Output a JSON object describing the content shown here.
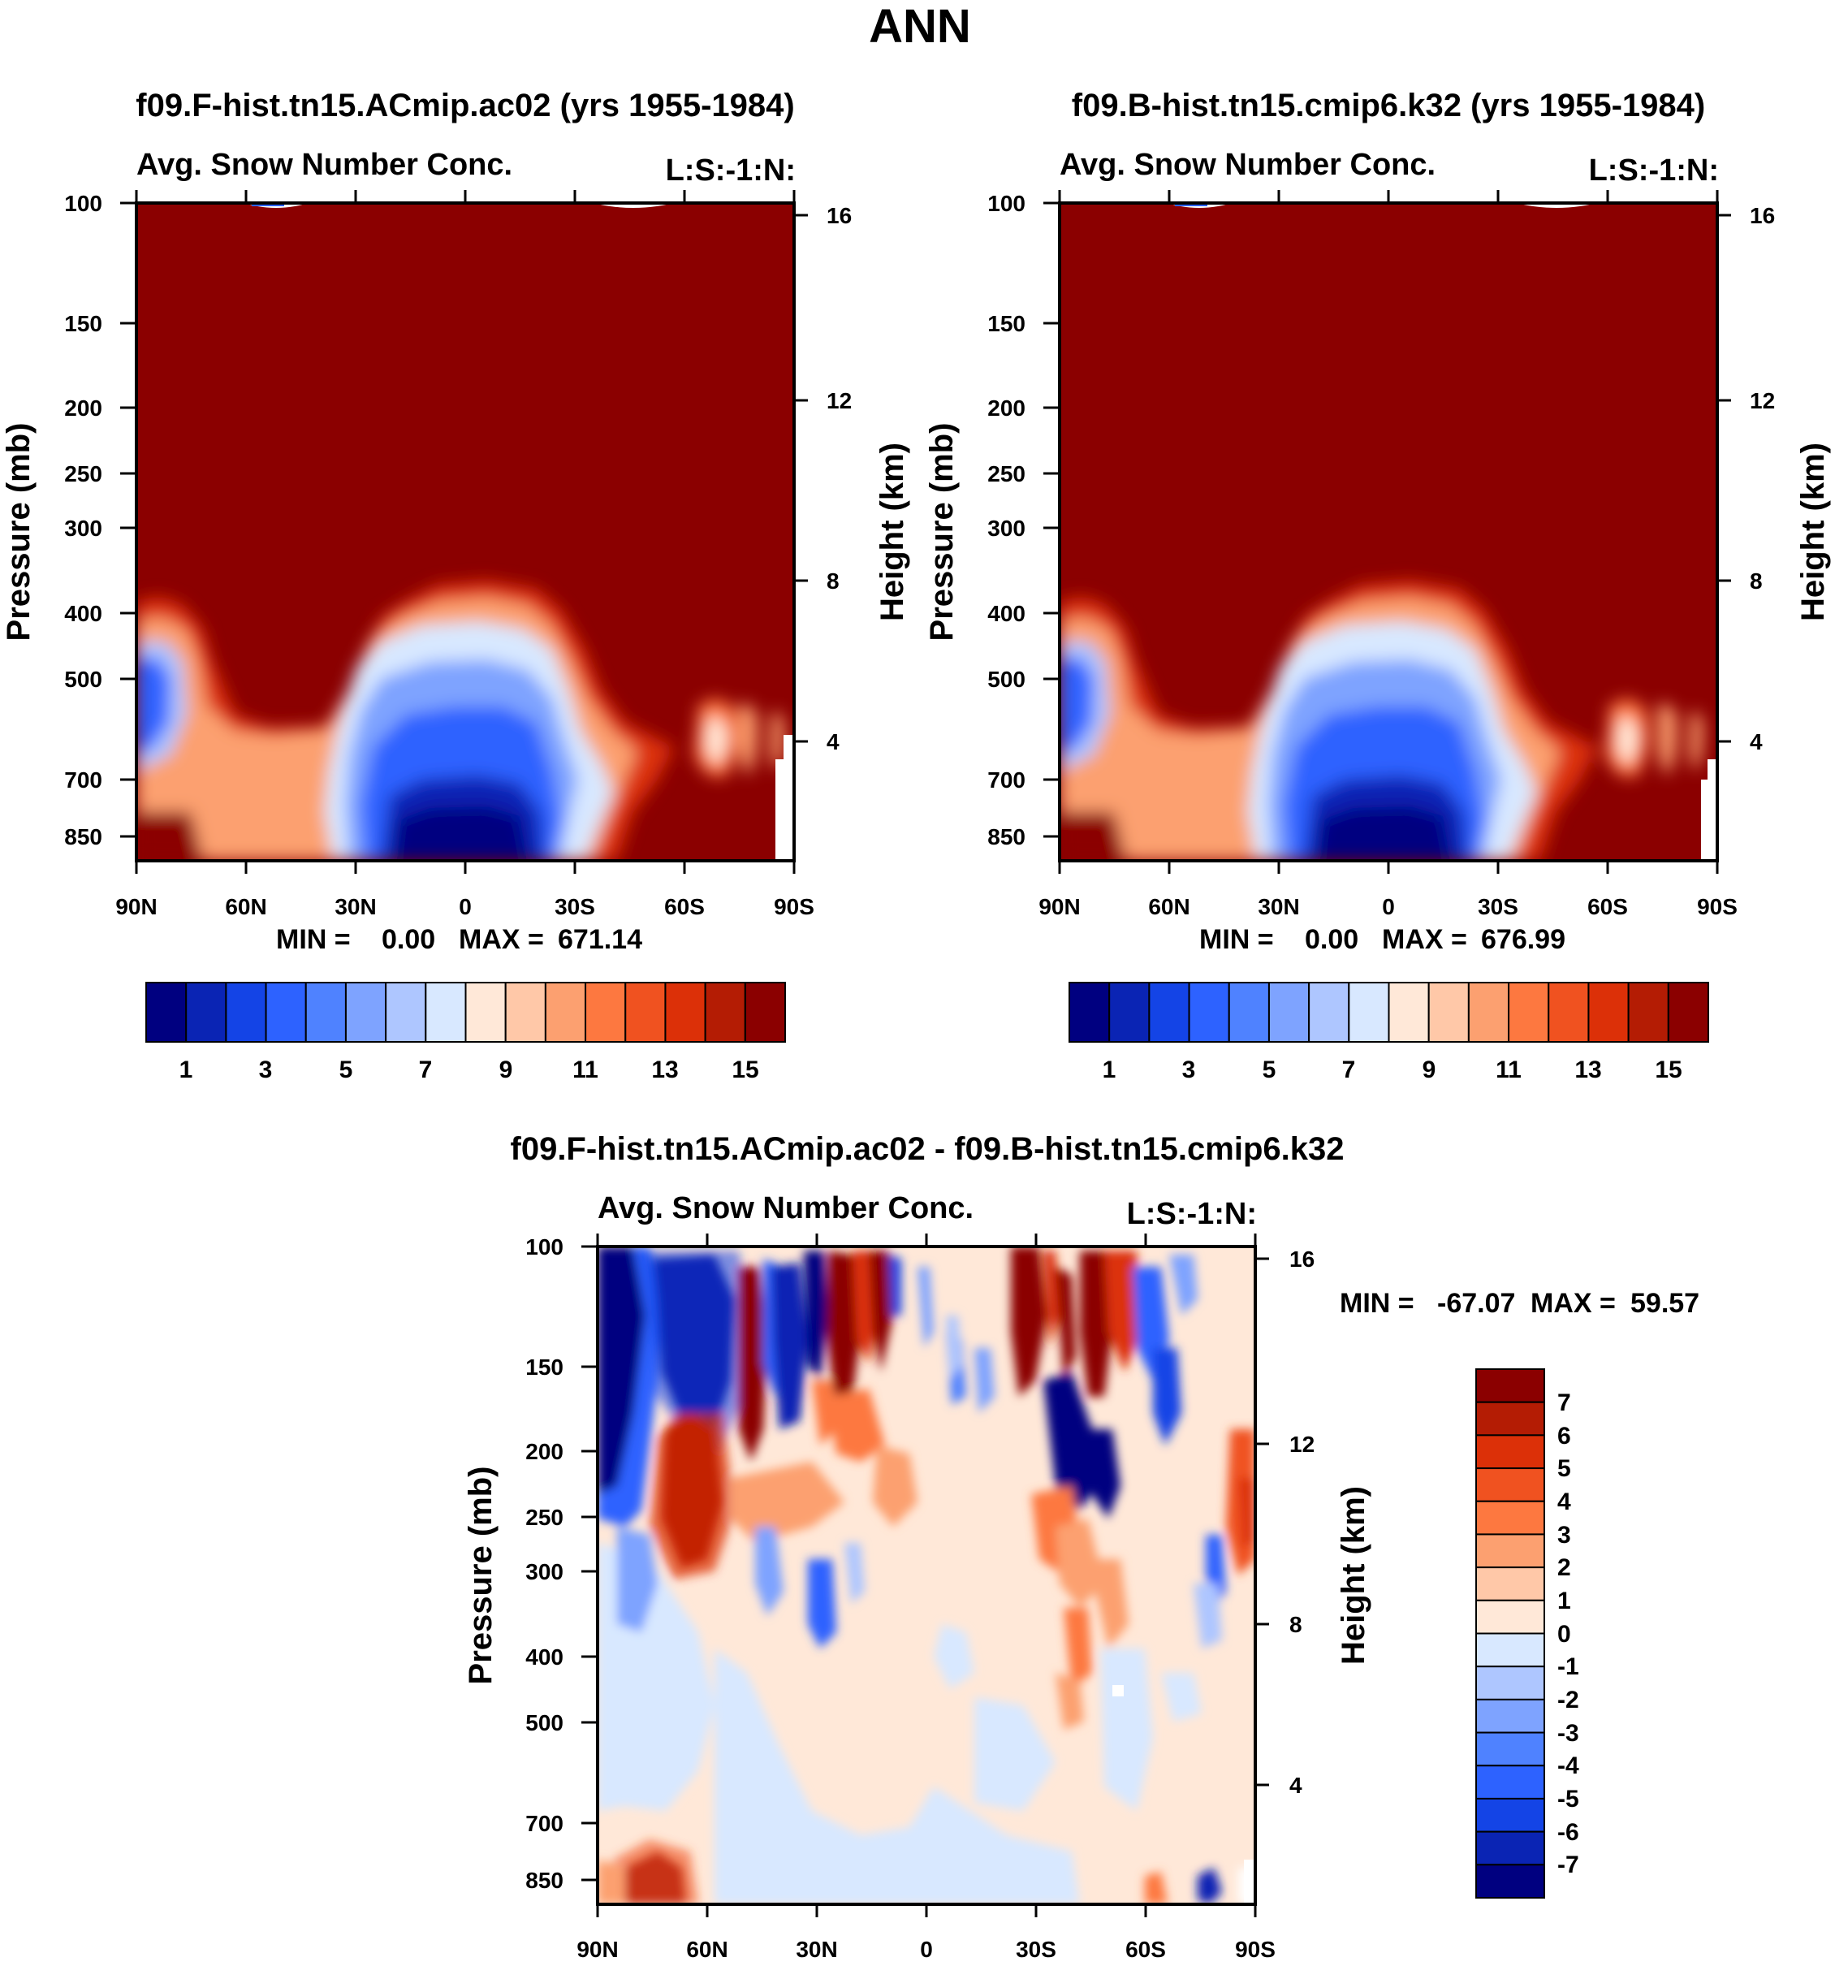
{
  "figure_title": "ANN",
  "colors": {
    "abs_levels": [
      "#000080",
      "#0a24b4",
      "#1444e6",
      "#2d62ff",
      "#4f82ff",
      "#7ea3ff",
      "#aec6ff",
      "#d8e8ff",
      "#ffe8d8",
      "#ffc8a8",
      "#fca070",
      "#fd7840",
      "#f05220",
      "#dc3008",
      "#b41c04",
      "#8b0000"
    ],
    "diff_levels": [
      "#8b0000",
      "#b41c04",
      "#dc3008",
      "#f05220",
      "#fd7840",
      "#fca070",
      "#ffc8a8",
      "#ffe8d8",
      "#d8e8ff",
      "#aec6ff",
      "#7ea3ff",
      "#4f82ff",
      "#2d62ff",
      "#1444e6",
      "#0a24b4",
      "#000080"
    ]
  },
  "chart_data": [
    {
      "type": "heatmap",
      "title": "f09.F-hist.tn15.ACmip.ac02 (yrs 1955-1984)",
      "left_string": "Avg. Snow Number Conc.",
      "right_string": "L:S:-1:N:",
      "ylabel": "Pressure (mb)",
      "y2label": "Height (km)",
      "xticks": [
        "90N",
        "60N",
        "30N",
        "0",
        "30S",
        "60S",
        "90S"
      ],
      "yticks": [
        "100",
        "150",
        "200",
        "250",
        "300",
        "400",
        "500",
        "700",
        "850"
      ],
      "y2ticks": [
        "16",
        "12",
        "8",
        "4"
      ],
      "stats": {
        "min_label": "MIN =",
        "min": "0.00",
        "max_label": "MAX =",
        "max": "671.14"
      },
      "colorbar_labels": [
        "1",
        "3",
        "5",
        "7",
        "9",
        "11",
        "13",
        "15"
      ]
    },
    {
      "type": "heatmap",
      "title": "f09.B-hist.tn15.cmip6.k32 (yrs 1955-1984)",
      "left_string": "Avg. Snow Number Conc.",
      "right_string": "L:S:-1:N:",
      "ylabel": "Pressure (mb)",
      "y2label": "Height (km)",
      "xticks": [
        "90N",
        "60N",
        "30N",
        "0",
        "30S",
        "60S",
        "90S"
      ],
      "yticks": [
        "100",
        "150",
        "200",
        "250",
        "300",
        "400",
        "500",
        "700",
        "850"
      ],
      "y2ticks": [
        "16",
        "12",
        "8",
        "4"
      ],
      "stats": {
        "min_label": "MIN =",
        "min": "0.00",
        "max_label": "MAX =",
        "max": "676.99"
      },
      "colorbar_labels": [
        "1",
        "3",
        "5",
        "7",
        "9",
        "11",
        "13",
        "15"
      ]
    },
    {
      "type": "heatmap",
      "title": "f09.F-hist.tn15.ACmip.ac02 - f09.B-hist.tn15.cmip6.k32",
      "left_string": "Avg. Snow Number Conc.",
      "right_string": "L:S:-1:N:",
      "ylabel": "Pressure (mb)",
      "y2label": "Height (km)",
      "xticks": [
        "90N",
        "60N",
        "30N",
        "0",
        "30S",
        "60S",
        "90S"
      ],
      "yticks": [
        "100",
        "150",
        "200",
        "250",
        "300",
        "400",
        "500",
        "700",
        "850"
      ],
      "y2ticks": [
        "16",
        "12",
        "8",
        "4"
      ],
      "stats": {
        "min_label": "MIN =",
        "min": "-67.07",
        "max_label": "MAX =",
        "max": "59.57"
      },
      "colorbar_labels": [
        "7",
        "6",
        "5",
        "4",
        "3",
        "2",
        "1",
        "0",
        "-1",
        "-2",
        "-3",
        "-4",
        "-5",
        "-6",
        "-7"
      ]
    }
  ]
}
